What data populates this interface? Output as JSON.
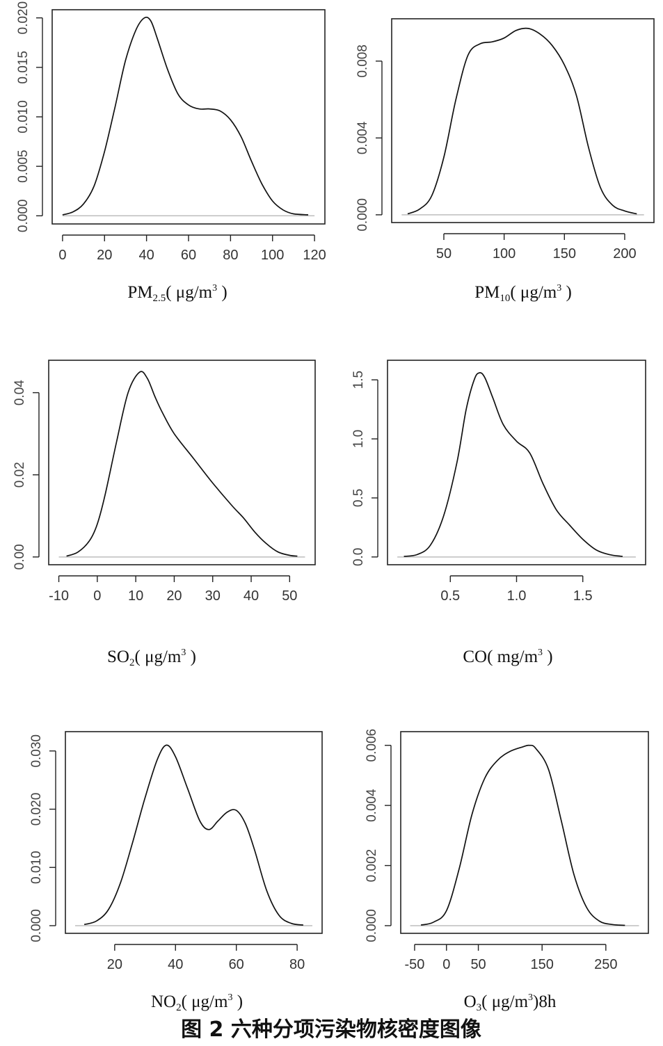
{
  "figure": {
    "caption": "图 2  六种分项污染物核密度图像"
  },
  "chart_data": [
    {
      "type": "line",
      "xlabel": "PM2.5( μg/m3 )",
      "xlabel_main": "PM",
      "xlabel_sub": "2.5",
      "xlabel_unit_base": "( μg/m",
      "xlabel_unit_sup": "3",
      "xlabel_tail": " )",
      "xlim": [
        0,
        120
      ],
      "ylim": [
        0,
        0.02
      ],
      "x_ticks": [
        0,
        20,
        40,
        60,
        80,
        100,
        120
      ],
      "x_tick_labels": [
        "0",
        "20",
        "40",
        "60",
        "80",
        "100",
        "120"
      ],
      "y_ticks": [
        0,
        0.005,
        0.01,
        0.015,
        0.02
      ],
      "y_tick_labels": [
        "0.000",
        "0.005",
        "0.010",
        "0.015",
        "0.020"
      ],
      "series": [
        {
          "x": [
            0,
            5,
            10,
            15,
            20,
            25,
            30,
            35,
            39,
            42,
            45,
            50,
            55,
            60,
            65,
            70,
            75,
            80,
            85,
            90,
            95,
            100,
            105,
            110,
            117
          ],
          "y": [
            0.0001,
            0.0004,
            0.0012,
            0.003,
            0.0065,
            0.011,
            0.0157,
            0.0188,
            0.02,
            0.0197,
            0.018,
            0.0148,
            0.0123,
            0.0112,
            0.0108,
            0.0108,
            0.0106,
            0.0097,
            0.008,
            0.0055,
            0.0032,
            0.0015,
            0.0006,
            0.0002,
            0.0001
          ]
        }
      ]
    },
    {
      "type": "line",
      "xlabel": "PM10( μg/m3 )",
      "xlabel_main": "PM",
      "xlabel_sub": "10",
      "xlabel_unit_base": "( μg/m",
      "xlabel_unit_sup": "3",
      "xlabel_tail": " )",
      "xlim": [
        15,
        216
      ],
      "ylim": [
        0,
        0.0098
      ],
      "x_ticks": [
        50,
        100,
        150,
        200
      ],
      "x_tick_labels": [
        "50",
        "100",
        "150",
        "200"
      ],
      "y_ticks": [
        0,
        0.004,
        0.008
      ],
      "y_tick_labels": [
        "0.000",
        "0.004",
        "0.008"
      ],
      "series": [
        {
          "x": [
            20,
            30,
            40,
            50,
            60,
            70,
            80,
            90,
            100,
            110,
            120,
            130,
            140,
            150,
            160,
            170,
            180,
            190,
            200,
            210
          ],
          "y": [
            5e-05,
            0.0003,
            0.001,
            0.003,
            0.006,
            0.0083,
            0.0089,
            0.009,
            0.0092,
            0.0096,
            0.0097,
            0.0094,
            0.0088,
            0.0078,
            0.0062,
            0.0035,
            0.0014,
            0.0005,
            0.0002,
            5e-05
          ]
        }
      ]
    },
    {
      "type": "line",
      "xlabel": "SO2( μg/m3 )",
      "xlabel_main": "SO",
      "xlabel_sub": "2",
      "xlabel_unit_base": "( μg/m",
      "xlabel_unit_sup": "3",
      "xlabel_tail": " )",
      "xlim": [
        -10,
        54
      ],
      "ylim": [
        0,
        0.046
      ],
      "x_ticks": [
        -10,
        0,
        10,
        20,
        30,
        40,
        50
      ],
      "x_tick_labels": [
        "-10",
        "0",
        "10",
        "20",
        "30",
        "40",
        "50"
      ],
      "y_ticks": [
        0,
        0.02,
        0.04
      ],
      "y_tick_labels": [
        "0.00",
        "0.02",
        "0.04"
      ],
      "series": [
        {
          "x": [
            -8,
            -5,
            -2,
            0,
            2,
            5,
            8,
            11,
            13,
            15,
            17,
            20,
            25,
            30,
            35,
            38,
            41,
            44,
            47,
            50,
            52
          ],
          "y": [
            0.0002,
            0.0012,
            0.004,
            0.008,
            0.015,
            0.028,
            0.04,
            0.045,
            0.0435,
            0.039,
            0.035,
            0.03,
            0.024,
            0.018,
            0.0125,
            0.0095,
            0.006,
            0.0032,
            0.0012,
            0.0004,
            0.0002
          ]
        }
      ]
    },
    {
      "type": "line",
      "xlabel": "CO( mg/m3 )",
      "xlabel_main": "CO",
      "xlabel_sub": "",
      "xlabel_unit_base": "( mg/m",
      "xlabel_unit_sup": "3",
      "xlabel_tail": " )",
      "xlim": [
        0.1,
        1.9
      ],
      "ylim": [
        0,
        1.6
      ],
      "x_ticks": [
        0.5,
        1.0,
        1.5
      ],
      "x_tick_labels": [
        "0.5",
        "1.0",
        "1.5"
      ],
      "y_ticks": [
        0,
        0.5,
        1.0,
        1.5
      ],
      "y_tick_labels": [
        "0.0",
        "0.5",
        "1.0",
        "1.5"
      ],
      "series": [
        {
          "x": [
            0.15,
            0.25,
            0.35,
            0.45,
            0.55,
            0.62,
            0.68,
            0.72,
            0.76,
            0.82,
            0.9,
            1.0,
            1.1,
            1.2,
            1.3,
            1.4,
            1.5,
            1.6,
            1.7,
            1.8
          ],
          "y": [
            0.005,
            0.02,
            0.1,
            0.35,
            0.8,
            1.25,
            1.5,
            1.56,
            1.52,
            1.35,
            1.12,
            0.98,
            0.88,
            0.62,
            0.4,
            0.27,
            0.15,
            0.06,
            0.02,
            0.005
          ]
        }
      ]
    },
    {
      "type": "line",
      "xlabel": "NO2( μg/m3 )",
      "xlabel_main": "NO",
      "xlabel_sub": "2",
      "xlabel_unit_base": "( μg/m",
      "xlabel_unit_sup": "3",
      "xlabel_tail": " )",
      "xlim": [
        7,
        85
      ],
      "ylim": [
        0,
        0.032
      ],
      "x_ticks": [
        20,
        40,
        60,
        80
      ],
      "x_tick_labels": [
        "20",
        "40",
        "60",
        "80"
      ],
      "y_ticks": [
        0,
        0.01,
        0.02,
        0.03
      ],
      "y_tick_labels": [
        "0.000",
        "0.010",
        "0.020",
        "0.030"
      ],
      "series": [
        {
          "x": [
            10,
            14,
            18,
            22,
            26,
            30,
            34,
            37,
            40,
            44,
            48,
            51,
            54,
            57,
            60,
            63,
            66,
            70,
            74,
            78,
            82
          ],
          "y": [
            0.0002,
            0.0008,
            0.0028,
            0.0075,
            0.0145,
            0.022,
            0.0285,
            0.031,
            0.029,
            0.0235,
            0.018,
            0.0165,
            0.018,
            0.0195,
            0.0198,
            0.0175,
            0.013,
            0.006,
            0.0018,
            0.0004,
            0.0001
          ]
        }
      ]
    },
    {
      "type": "line",
      "xlabel": "O3( μg/m3 )8h",
      "xlabel_main": "O",
      "xlabel_sub": "3",
      "xlabel_unit_base": "( μg/m",
      "xlabel_unit_sup": "3",
      "xlabel_tail": ")8h",
      "xlim": [
        -57,
        302
      ],
      "ylim": [
        0,
        0.0062
      ],
      "x_ticks": [
        -50,
        0,
        50,
        150,
        250
      ],
      "x_tick_labels": [
        "-50",
        "0",
        "50",
        "150",
        "250"
      ],
      "y_ticks": [
        0,
        0.002,
        0.004,
        0.006
      ],
      "y_tick_labels": [
        "0.000",
        "0.002",
        "0.004",
        "0.006"
      ],
      "series": [
        {
          "x": [
            -40,
            -20,
            0,
            20,
            40,
            60,
            80,
            100,
            120,
            130,
            140,
            160,
            180,
            200,
            220,
            240,
            260,
            280
          ],
          "y": [
            2e-05,
            0.00012,
            0.0005,
            0.0019,
            0.0037,
            0.0049,
            0.0055,
            0.0058,
            0.00595,
            0.006,
            0.0059,
            0.0052,
            0.0035,
            0.0017,
            0.0006,
            0.00015,
            4e-05,
            1e-05
          ]
        }
      ]
    }
  ]
}
